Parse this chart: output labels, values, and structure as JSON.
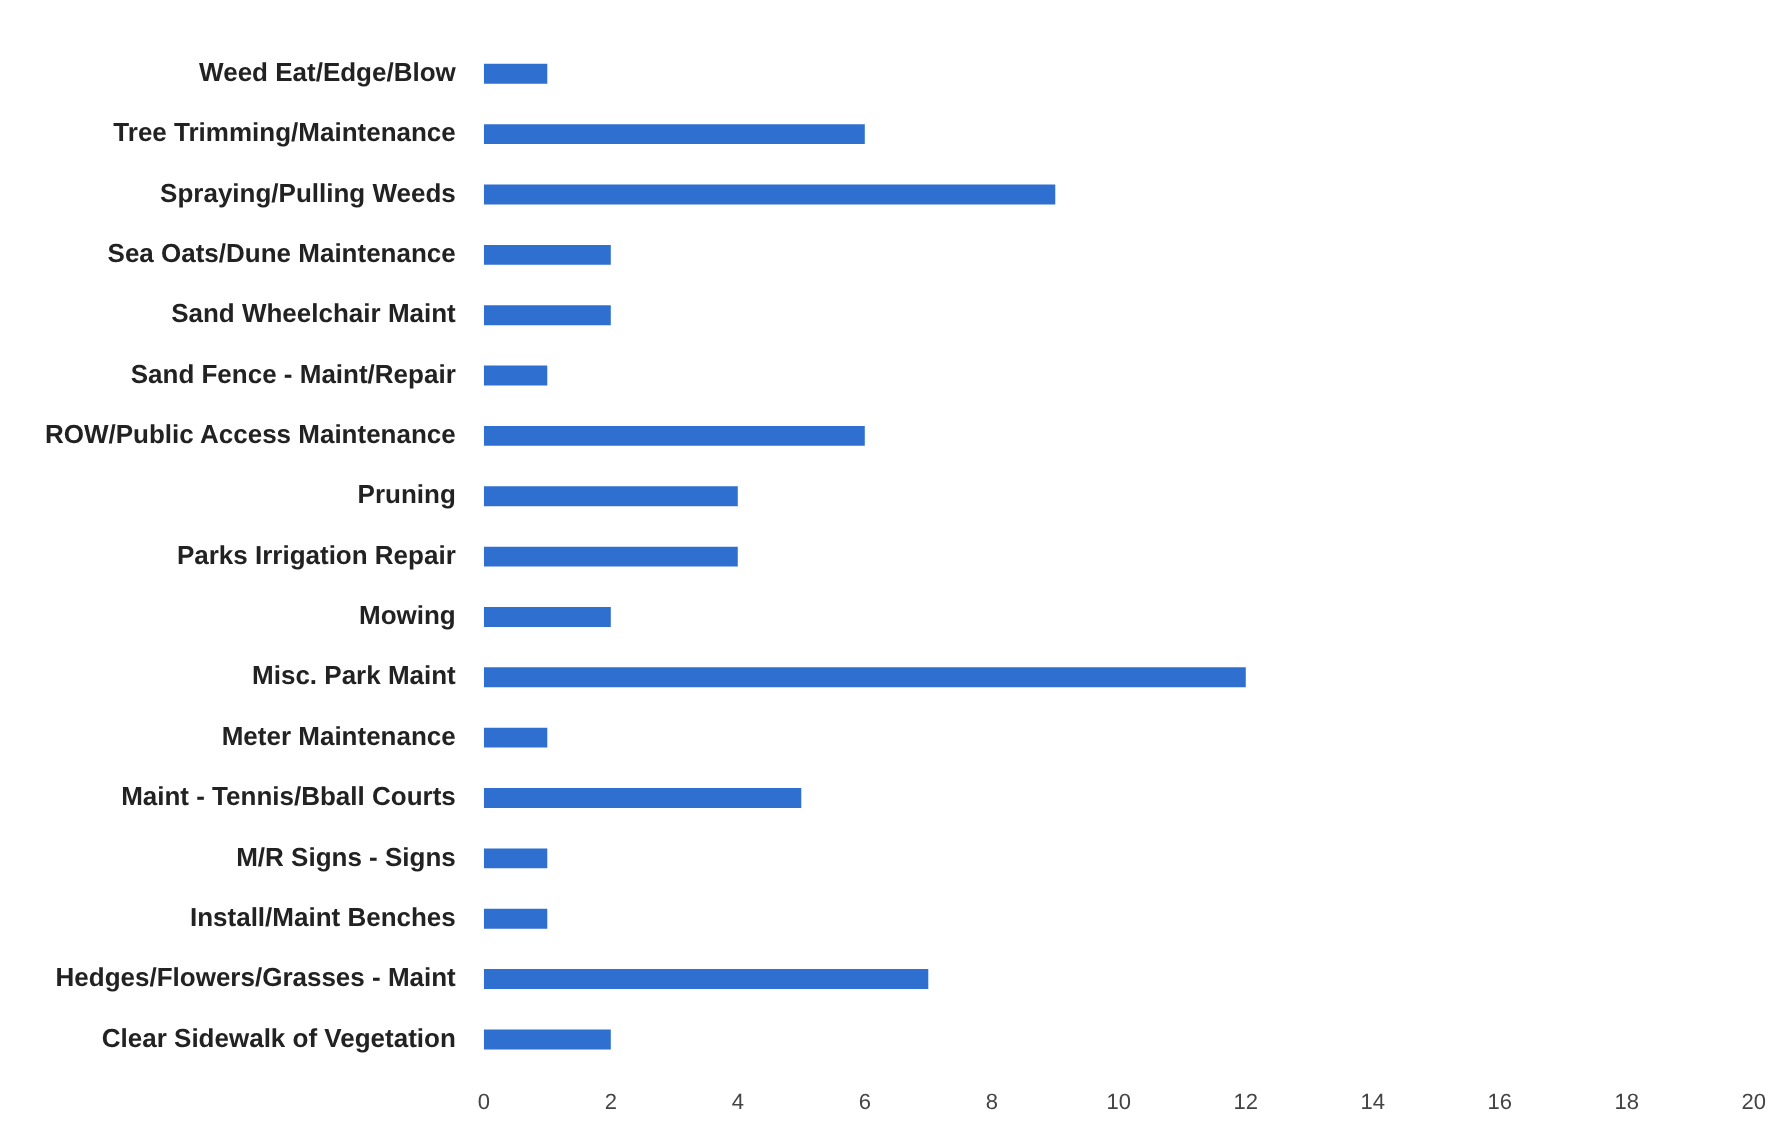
{
  "chart_data": {
    "type": "bar",
    "orientation": "horizontal",
    "categories": [
      "Weed Eat/Edge/Blow",
      "Tree Trimming/Maintenance",
      "Spraying/Pulling Weeds",
      "Sea Oats/Dune Maintenance",
      "Sand Wheelchair Maint",
      "Sand Fence - Maint/Repair",
      "ROW/Public Access Maintenance",
      "Pruning",
      "Parks Irrigation Repair",
      "Mowing",
      "Misc. Park Maint",
      "Meter Maintenance",
      "Maint - Tennis/Bball Courts",
      "M/R Signs - Signs",
      "Install/Maint Benches",
      "Hedges/Flowers/Grasses - Maint",
      "Clear Sidewalk of Vegetation"
    ],
    "values": [
      1,
      6,
      9,
      2,
      2,
      1,
      6,
      4,
      4,
      2,
      12,
      1,
      5,
      1,
      1,
      7,
      2
    ],
    "color": "#2e6fd0",
    "xlim": [
      0,
      20
    ],
    "xticks": [
      0,
      2,
      4,
      6,
      8,
      10,
      12,
      14,
      16,
      18,
      20
    ],
    "grid": false,
    "legend": false
  }
}
